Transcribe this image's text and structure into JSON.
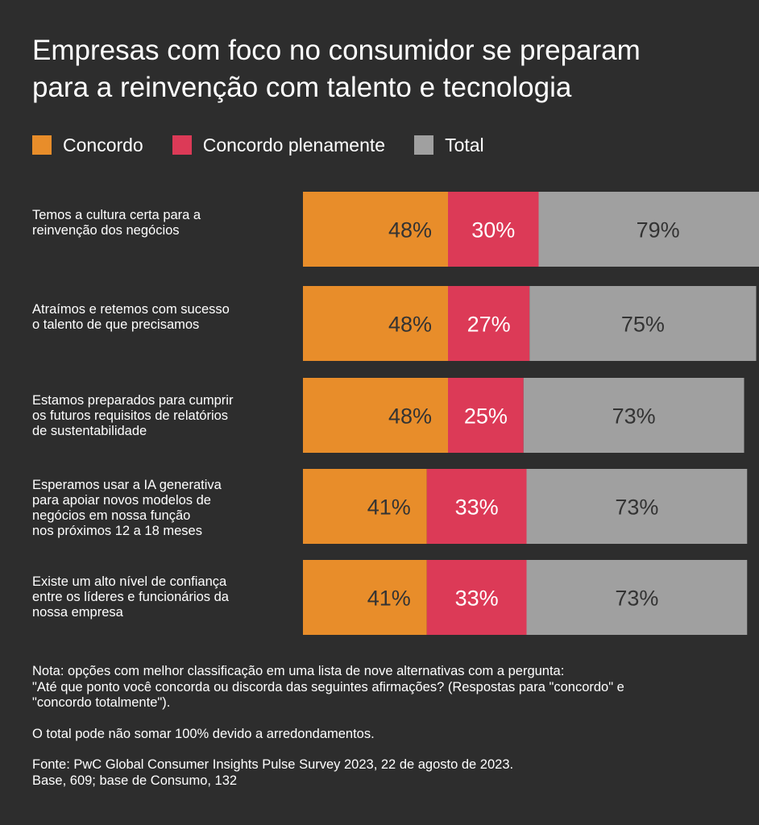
{
  "title_line1": "Empresas com foco no consumidor se preparam",
  "title_line2": "para a reinvenção com talento e tecnologia",
  "colors": {
    "background": "#2d2d2d",
    "concordo": "#e88d2a",
    "plenamente": "#dc3a57",
    "total": "#a0a0a0"
  },
  "legend": [
    {
      "label": "Concordo",
      "color": "#e88d2a"
    },
    {
      "label": "Concordo plenamente",
      "color": "#dc3a57"
    },
    {
      "label": "Total",
      "color": "#a0a0a0"
    }
  ],
  "rows": [
    {
      "lines": [
        "Temos a cultura certa para a",
        "reinvenção dos negócios"
      ]
    },
    {
      "lines": [
        "Atraímos e retemos com sucesso",
        "o talento de que precisamos"
      ]
    },
    {
      "lines": [
        "Estamos preparados para cumprir",
        "os futuros requisitos de relatórios",
        "de sustentabilidade"
      ]
    },
    {
      "lines": [
        "Esperamos usar a IA generativa",
        "para apoiar novos modelos de",
        "negócios em nossa função",
        "nos próximos 12 a 18 meses"
      ]
    },
    {
      "lines": [
        "Existe um alto nível de confiança",
        "entre os líderes e funcionários da",
        "nossa empresa"
      ]
    }
  ],
  "chart_data": {
    "type": "bar",
    "orientation": "horizontal-stacked",
    "categories": [
      "Temos a cultura certa para a reinvenção dos negócios",
      "Atraímos e retemos com sucesso o talento de que precisamos",
      "Estamos preparados para cumprir os futuros requisitos de relatórios de sustentabilidade",
      "Esperamos usar a IA generativa para apoiar novos modelos de negócios em nossa função nos próximos 12 a 18 meses",
      "Existe um alto nível de confiança entre os líderes e funcionários da nossa empresa"
    ],
    "series": [
      {
        "name": "Concordo",
        "values": [
          48,
          48,
          48,
          41,
          41
        ]
      },
      {
        "name": "Concordo plenamente",
        "values": [
          30,
          27,
          25,
          33,
          33
        ]
      },
      {
        "name": "Total",
        "values": [
          79,
          75,
          73,
          73,
          73
        ]
      }
    ],
    "value_labels": [
      [
        "48%",
        "48%",
        "48%",
        "41%",
        "41%"
      ],
      [
        "30%",
        "27%",
        "25%",
        "33%",
        "33%"
      ],
      [
        "79%",
        "75%",
        "73%",
        "73%",
        "73%"
      ]
    ],
    "legend_position": "top-left",
    "grid": false
  },
  "footnotes": {
    "note_line1": "Nota: opções com melhor classificação em uma lista de nove alternativas com a pergunta:",
    "note_line2": "\"Até que ponto você concorda ou discorda das seguintes afirmações? (Respostas para \"concordo\" e",
    "note_line3": "\"concordo totalmente\").",
    "rounding": "O total pode não somar 100% devido a arredondamentos.",
    "source_line1": "Fonte: PwC Global Consumer Insights Pulse Survey 2023, 22 de agosto de 2023.",
    "source_line2": "Base, 609; base de Consumo, 132"
  }
}
